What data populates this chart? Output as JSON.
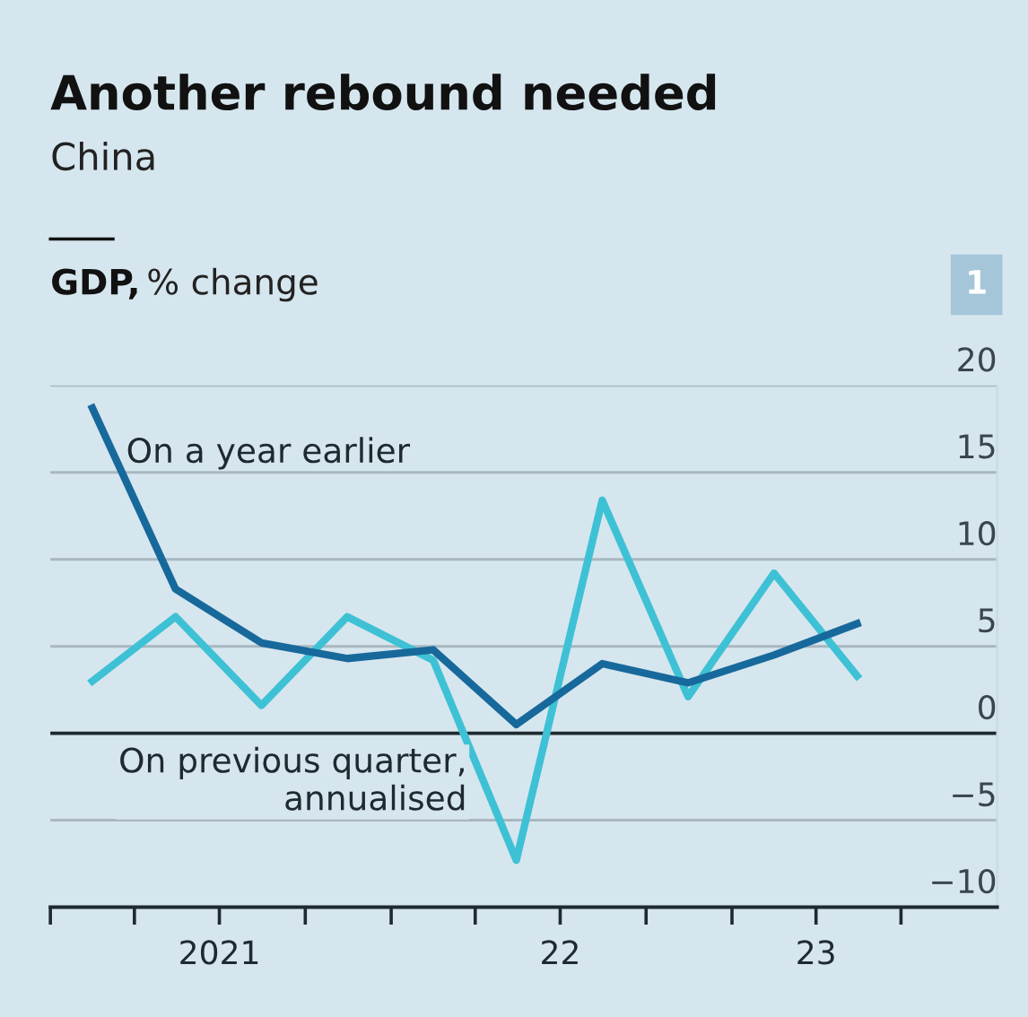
{
  "chart_data": {
    "type": "line",
    "title": "Another rebound needed",
    "subtitle": "China",
    "ylabel": "GDP, % change",
    "annotations": [
      "1"
    ],
    "x": [
      "2021-02-15",
      "2021-05-15",
      "2021-08-15",
      "2021-11-15",
      "2022-02-15",
      "2022-05-15",
      "2022-08-15",
      "2022-11-15",
      "2023-02-15",
      "2023-05-15"
    ],
    "series": [
      {
        "name": "On a year earlier",
        "color": "#17699c",
        "values": [
          18.7,
          8.3,
          5.2,
          4.3,
          4.8,
          0.5,
          4.0,
          2.9,
          4.5,
          6.3
        ]
      },
      {
        "name": "On previous quarter, annualised",
        "color": "#3ec1d5",
        "values": [
          3.0,
          6.7,
          1.6,
          6.7,
          4.2,
          -7.3,
          13.4,
          2.1,
          9.2,
          3.3
        ]
      }
    ],
    "xlim": [
      "2021-01-01",
      "2023-10-12"
    ],
    "ylim": [
      -10,
      20
    ],
    "xticks": [
      {
        "value": "2021-01-01",
        "label": null
      },
      {
        "value": "2021-04-01",
        "label": null
      },
      {
        "value": "2021-07-01",
        "label": "2021"
      },
      {
        "value": "2021-10-01",
        "label": null
      },
      {
        "value": "2022-01-01",
        "label": null
      },
      {
        "value": "2022-04-01",
        "label": null
      },
      {
        "value": "2022-07-01",
        "label": "22"
      },
      {
        "value": "2022-10-01",
        "label": null
      },
      {
        "value": "2023-01-01",
        "label": null
      },
      {
        "value": "2023-04-01",
        "label": "23"
      },
      {
        "value": "2023-07-01",
        "label": null
      }
    ],
    "yticks": [
      -10,
      -5,
      0,
      5,
      10,
      15,
      20
    ],
    "ref_lines": [
      {
        "axis": "y",
        "value": 0,
        "color": "#1f2a30"
      }
    ],
    "grid": "y",
    "legend": false,
    "marker": "none",
    "line_style": "solid"
  }
}
